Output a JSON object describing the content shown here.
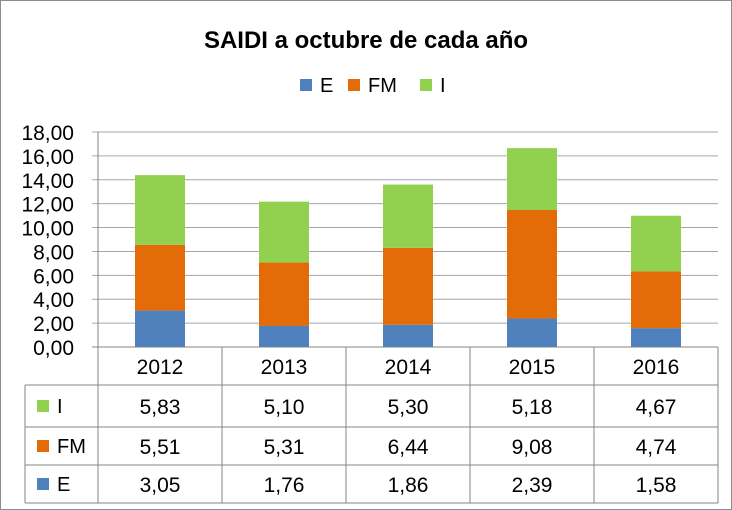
{
  "chart_data": {
    "type": "bar",
    "stacked": true,
    "title": "SAIDI a octubre de cada año",
    "categories": [
      "2012",
      "2013",
      "2014",
      "2015",
      "2016"
    ],
    "series": [
      {
        "name": "E",
        "color": "#4f81bd",
        "values": [
          3.05,
          1.76,
          1.86,
          2.39,
          1.58
        ],
        "labels": [
          "3,05",
          "1,76",
          "1,86",
          "2,39",
          "1,58"
        ]
      },
      {
        "name": "FM",
        "color": "#e36c09",
        "values": [
          5.51,
          5.31,
          6.44,
          9.08,
          4.74
        ],
        "labels": [
          "5,51",
          "5,31",
          "6,44",
          "9,08",
          "4,74"
        ]
      },
      {
        "name": "I",
        "color": "#92d050",
        "values": [
          5.83,
          5.1,
          5.3,
          5.18,
          4.67
        ],
        "labels": [
          "5,83",
          "5,10",
          "5,30",
          "5,18",
          "4,67"
        ]
      }
    ],
    "ylim": [
      0,
      18
    ],
    "yticks": [
      "0,00",
      "2,00",
      "4,00",
      "6,00",
      "8,00",
      "10,00",
      "12,00",
      "14,00",
      "16,00",
      "18,00"
    ],
    "legend": "top",
    "grid": true,
    "data_table": true,
    "table_row_order": [
      "I",
      "FM",
      "E"
    ]
  }
}
